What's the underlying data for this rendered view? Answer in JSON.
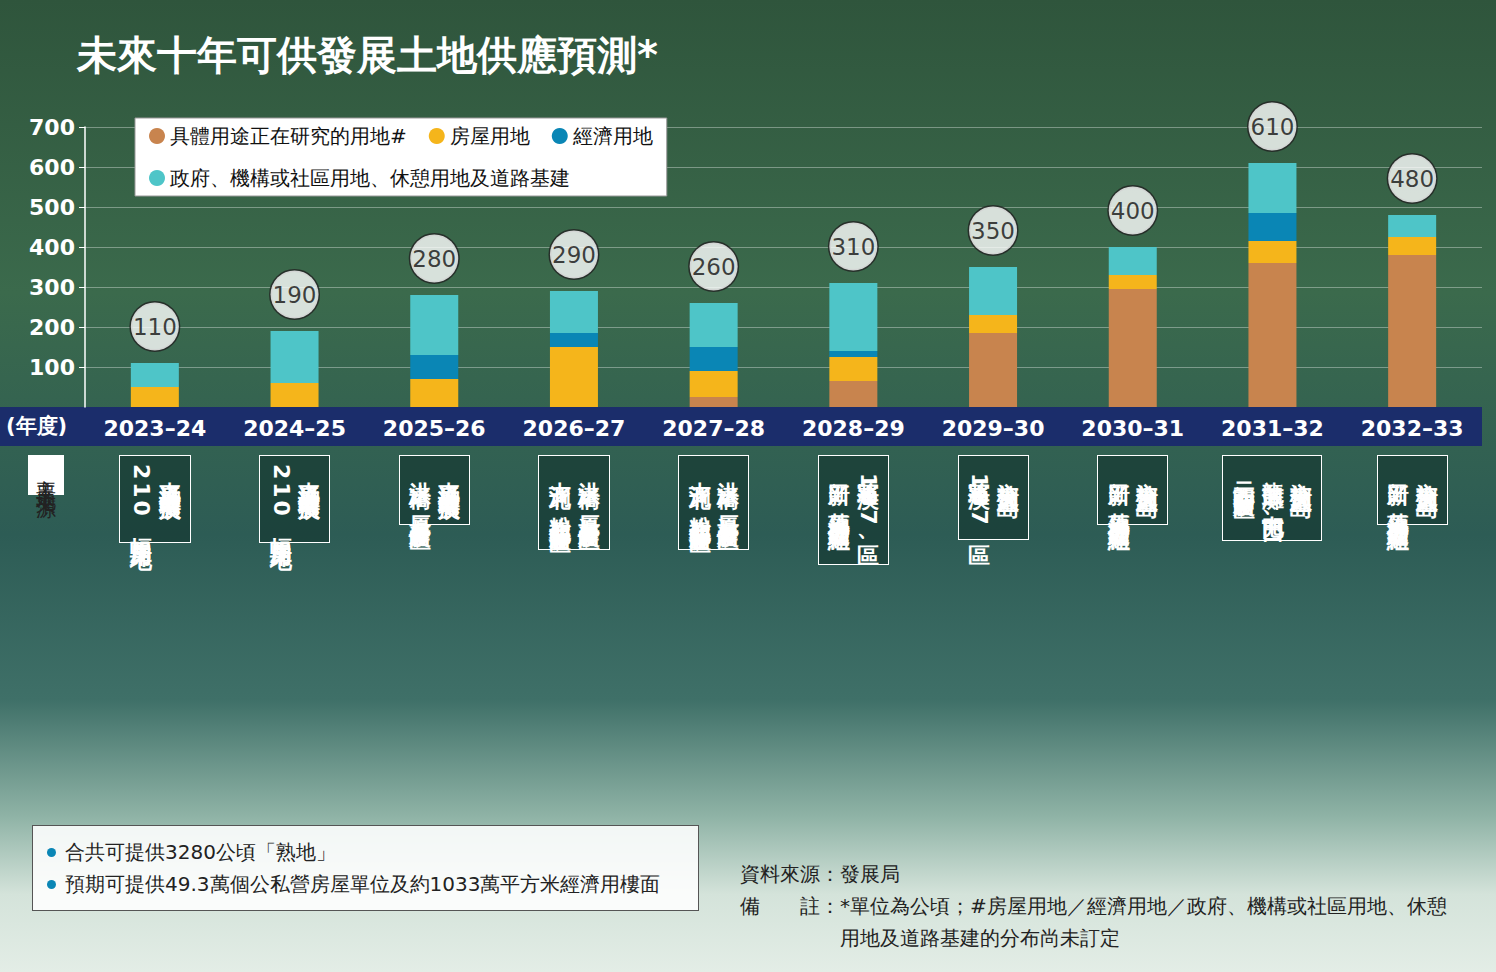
{
  "chart_data": {
    "type": "bar",
    "title": "未來十年可供發展土地供應預測*",
    "x_label": "(年度)",
    "categories": [
      "2023–24",
      "2024–25",
      "2025–26",
      "2026–27",
      "2027–28",
      "2028–29",
      "2029–30",
      "2030–31",
      "2031–32",
      "2032–33"
    ],
    "series": [
      {
        "name": "具體用途正在研究的用地#",
        "color": "#c8844e",
        "values": [
          0,
          0,
          0,
          0,
          25,
          65,
          185,
          295,
          360,
          380
        ]
      },
      {
        "name": "房屋用地",
        "color": "#f5b51b",
        "values": [
          50,
          60,
          70,
          150,
          65,
          60,
          45,
          35,
          55,
          45
        ]
      },
      {
        "name": "經濟用地",
        "color": "#0a86b5",
        "values": [
          0,
          0,
          60,
          35,
          60,
          15,
          0,
          0,
          70,
          0
        ]
      },
      {
        "name": "政府、機構或社區用地、休憩用地及道路基建",
        "color": "#4ec5c8",
        "values": [
          60,
          130,
          150,
          105,
          110,
          170,
          120,
          70,
          125,
          55
        ]
      }
    ],
    "totals": [
      110,
      190,
      280,
      290,
      260,
      310,
      350,
      400,
      610,
      480
    ],
    "stacked": true,
    "ylim": [
      0,
      700
    ],
    "yticks": [
      100,
      200,
      300,
      400,
      500,
      600,
      700
    ],
    "grid": true,
    "legend": "top-left",
    "land_sources_label": "主要土地來源",
    "land_sources": [
      [
        "東涌新市鎮擴展、",
        "210幅房屋用地"
      ],
      [
        "東涌新市鎮擴展、",
        "210幅房屋用地"
      ],
      [
        "東涌新市鎮擴展、",
        "洪水橋／厦村新發展區"
      ],
      [
        "洪水橋／厦村新發展區、",
        "古洞北／粉嶺北新發展區"
      ],
      [
        "洪水橋／厦村新發展區、",
        "古洞北／粉嶺北新發展區"
      ],
      [
        "將軍澳137區、",
        "新田／落馬洲發展樞紐"
      ],
      [
        "交椅洲人工島、",
        "將軍澳137區"
      ],
      [
        "交椅洲人工島、",
        "新田／落馬洲發展樞紐"
      ],
      [
        "交椅洲人工島、",
        "龍鼓灘／屯門西、",
        "元朗南新發展區"
      ],
      [
        "交椅洲人工島、",
        "新田／落馬洲發展樞紐"
      ]
    ]
  },
  "notes": {
    "bullets": [
      "合共可提供3280公頃「熟地」",
      "預期可提供49.3萬個公私營房屋單位及約1033萬平方米經濟用樓面"
    ],
    "source": "資料來源：發展局",
    "note_label": "備　　註：",
    "note": "*單位為公頃；#房屋用地／經濟用地／政府、機構或社區用地、休憩用地及道路基建的分布尚未訂定"
  }
}
